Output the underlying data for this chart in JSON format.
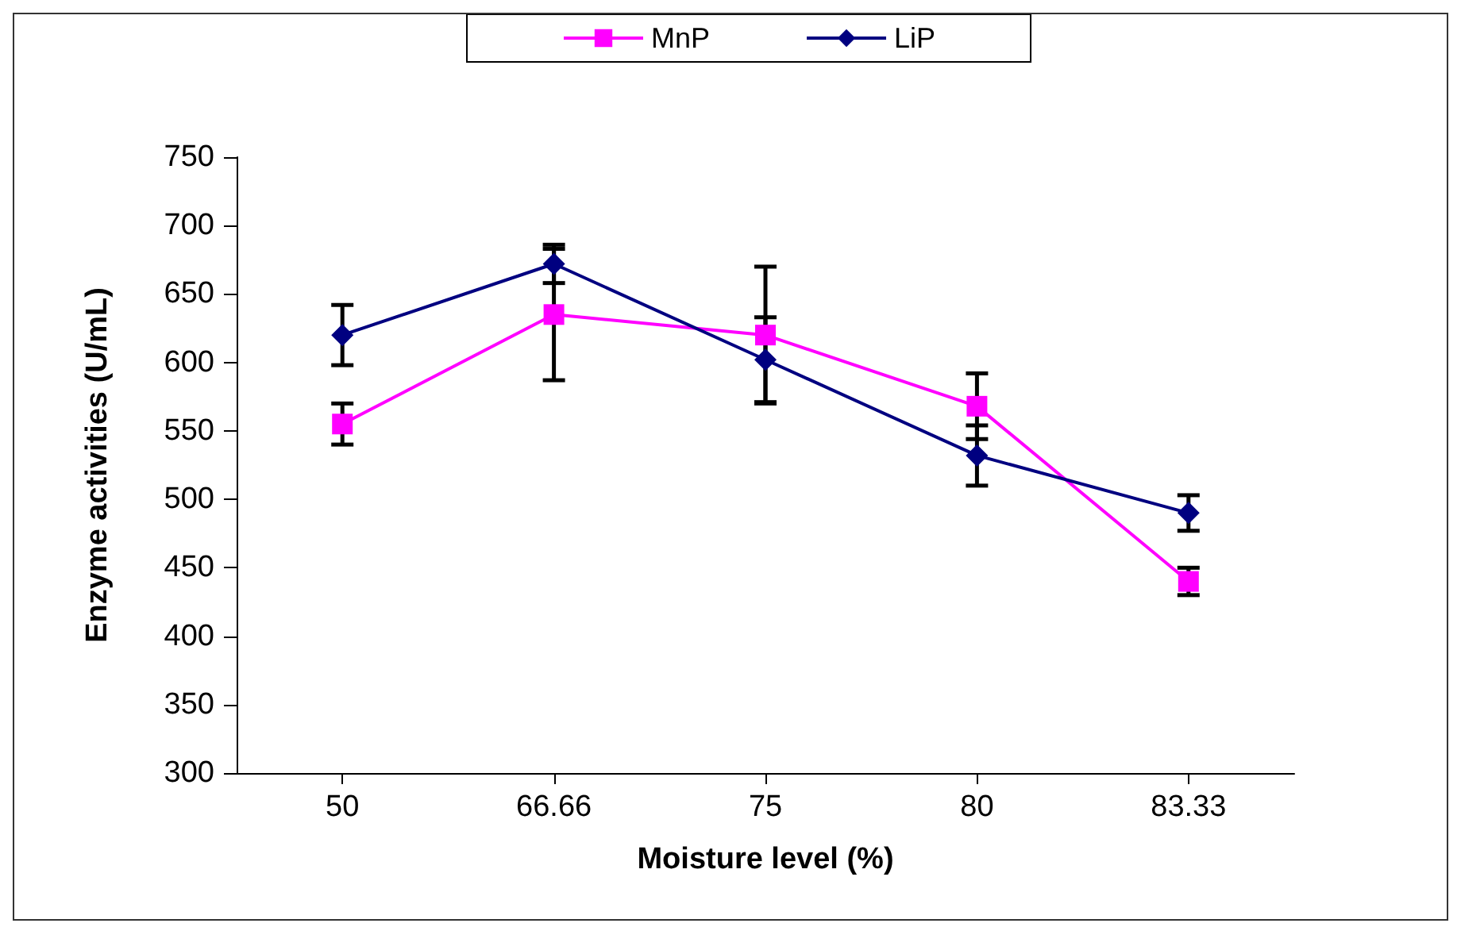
{
  "chart_data": {
    "type": "line",
    "xlabel": "Moisture level (%)",
    "ylabel": "Enzyme activities (U/mL)",
    "categories": [
      "50",
      "66.66",
      "75",
      "80",
      "83.33"
    ],
    "series": [
      {
        "name": "MnP",
        "color": "#ff00ff",
        "marker": "square",
        "values": [
          555,
          635,
          620,
          568,
          440
        ],
        "errors": [
          15,
          48,
          50,
          24,
          10
        ]
      },
      {
        "name": "LiP",
        "color": "#000080",
        "marker": "diamond",
        "values": [
          620,
          672,
          602,
          532,
          490
        ],
        "errors": [
          22,
          14,
          31,
          22,
          13
        ]
      }
    ],
    "ylim": [
      300,
      750
    ],
    "yticks": [
      300,
      350,
      400,
      450,
      500,
      550,
      600,
      650,
      700,
      750
    ],
    "grid": false,
    "legend": "top"
  }
}
